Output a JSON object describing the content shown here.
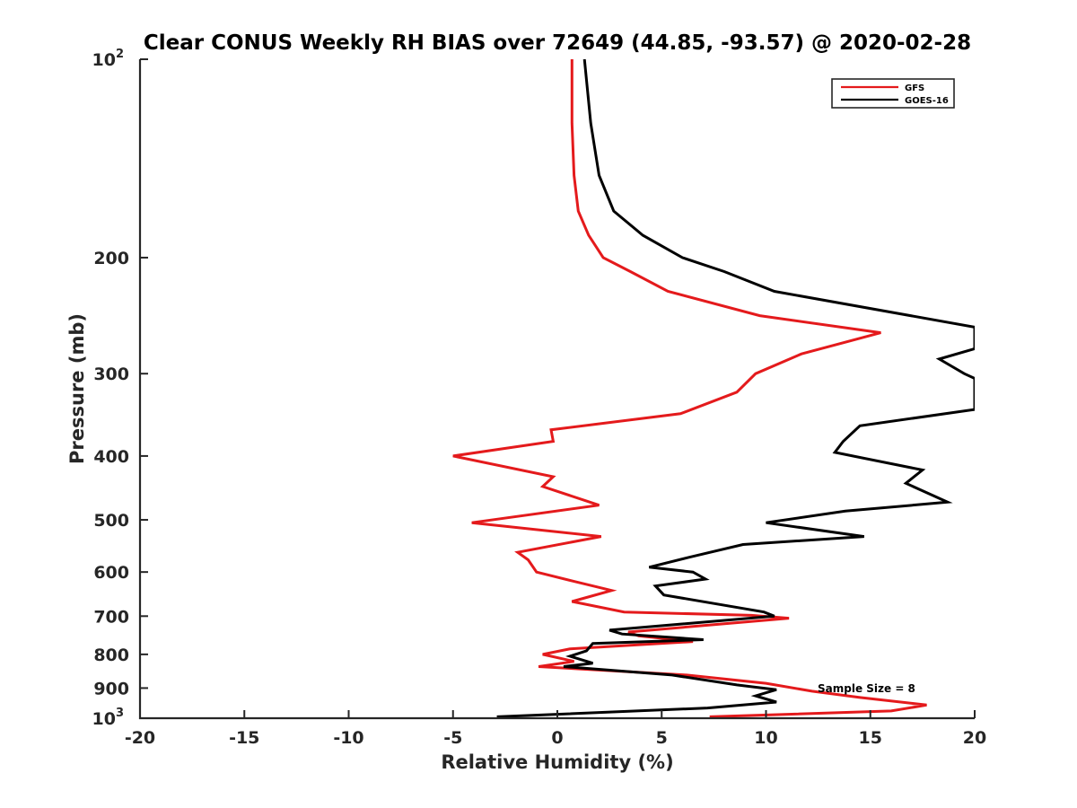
{
  "chart_data": {
    "type": "line",
    "title": "Clear CONUS Weekly RH BIAS over 72649 (44.85, -93.57) @ 2020-02-28",
    "xlabel": "Relative Humidity (%)",
    "ylabel": "Pressure (mb)",
    "xlim": [
      -20,
      20
    ],
    "ylim": [
      100,
      1000
    ],
    "y_scale": "log",
    "y_reversed": true,
    "grid": false,
    "legend_position": "top-right",
    "annotation": "Sample Size = 8",
    "x_ticks": [
      "-20",
      "-15",
      "-10",
      "-5",
      "0",
      "5",
      "10",
      "15",
      "20"
    ],
    "y_ticks": [
      {
        "value": 100,
        "base": "10",
        "exp": "2"
      },
      {
        "value": 200,
        "base": "200",
        "exp": ""
      },
      {
        "value": 300,
        "base": "300",
        "exp": ""
      },
      {
        "value": 400,
        "base": "400",
        "exp": ""
      },
      {
        "value": 500,
        "base": "500",
        "exp": ""
      },
      {
        "value": 600,
        "base": "600",
        "exp": ""
      },
      {
        "value": 700,
        "base": "700",
        "exp": ""
      },
      {
        "value": 800,
        "base": "800",
        "exp": ""
      },
      {
        "value": 900,
        "base": "900",
        "exp": ""
      },
      {
        "value": 1000,
        "base": "10",
        "exp": "3"
      }
    ],
    "series": [
      {
        "name": "GFS",
        "color": "#e41a1c",
        "points": [
          [
            0.7,
            100
          ],
          [
            0.7,
            125
          ],
          [
            0.8,
            150
          ],
          [
            1.0,
            170
          ],
          [
            1.5,
            185
          ],
          [
            2.2,
            200
          ],
          [
            3.5,
            210
          ],
          [
            5.3,
            225
          ],
          [
            9.7,
            245
          ],
          [
            15.5,
            260
          ],
          [
            11.7,
            280
          ],
          [
            9.5,
            300
          ],
          [
            8.6,
            320
          ],
          [
            5.9,
            345
          ],
          [
            -0.3,
            365
          ],
          [
            -0.2,
            380
          ],
          [
            -5.0,
            400
          ],
          [
            -0.2,
            430
          ],
          [
            -0.7,
            445
          ],
          [
            2.0,
            475
          ],
          [
            -4.1,
            505
          ],
          [
            2.1,
            530
          ],
          [
            -1.9,
            560
          ],
          [
            -1.4,
            575
          ],
          [
            -1.0,
            600
          ],
          [
            0.8,
            620
          ],
          [
            2.6,
            640
          ],
          [
            0.7,
            665
          ],
          [
            3.2,
            690
          ],
          [
            9.3,
            698
          ],
          [
            11.1,
            705
          ],
          [
            3.4,
            740
          ],
          [
            3.9,
            750
          ],
          [
            6.5,
            765
          ],
          [
            0.6,
            785
          ],
          [
            -0.7,
            800
          ],
          [
            0.8,
            820
          ],
          [
            -0.9,
            835
          ],
          [
            6.2,
            860
          ],
          [
            10.0,
            885
          ],
          [
            12.2,
            910
          ],
          [
            14.5,
            930
          ],
          [
            17.7,
            955
          ],
          [
            16.0,
            975
          ],
          [
            7.3,
            995
          ]
        ]
      },
      {
        "name": "GOES-16",
        "color": "#000000",
        "points": [
          [
            1.3,
            100
          ],
          [
            1.6,
            125
          ],
          [
            2.0,
            150
          ],
          [
            2.7,
            170
          ],
          [
            4.1,
            185
          ],
          [
            6.0,
            200
          ],
          [
            8.0,
            210
          ],
          [
            10.4,
            225
          ],
          [
            20.0,
            255
          ],
          [
            20.0,
            275
          ],
          [
            18.3,
            285
          ],
          [
            19.5,
            300
          ],
          [
            20.0,
            305
          ],
          [
            20.0,
            340
          ],
          [
            14.5,
            360
          ],
          [
            13.7,
            380
          ],
          [
            13.3,
            395
          ],
          [
            17.5,
            420
          ],
          [
            16.7,
            440
          ],
          [
            18.7,
            470
          ],
          [
            13.8,
            485
          ],
          [
            10.0,
            505
          ],
          [
            14.7,
            530
          ],
          [
            8.9,
            545
          ],
          [
            6.3,
            570
          ],
          [
            4.4,
            590
          ],
          [
            6.5,
            600
          ],
          [
            7.1,
            615
          ],
          [
            4.7,
            630
          ],
          [
            5.1,
            650
          ],
          [
            9.9,
            690
          ],
          [
            10.4,
            700
          ],
          [
            2.5,
            735
          ],
          [
            3.1,
            745
          ],
          [
            7.0,
            760
          ],
          [
            1.7,
            770
          ],
          [
            1.4,
            790
          ],
          [
            0.6,
            805
          ],
          [
            1.7,
            825
          ],
          [
            0.3,
            835
          ],
          [
            5.5,
            860
          ],
          [
            8.6,
            890
          ],
          [
            10.5,
            905
          ],
          [
            9.5,
            925
          ],
          [
            10.5,
            945
          ],
          [
            7.2,
            965
          ],
          [
            -2.9,
            995
          ]
        ]
      }
    ]
  }
}
